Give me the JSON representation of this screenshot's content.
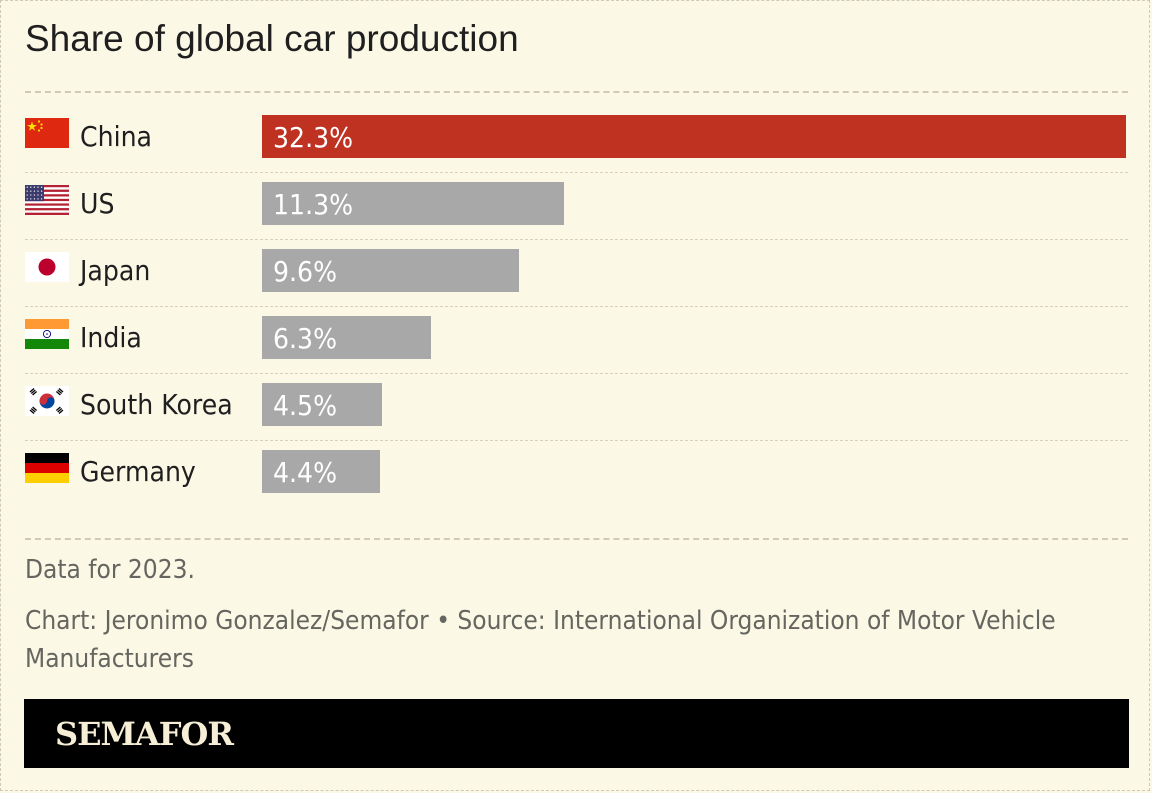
{
  "title": "Share of global car production",
  "chart_data": {
    "type": "bar",
    "orientation": "horizontal",
    "title": "Share of global car production",
    "categories": [
      "China",
      "US",
      "Japan",
      "India",
      "South Korea",
      "Germany"
    ],
    "values": [
      32.3,
      11.3,
      9.6,
      6.3,
      4.5,
      4.4
    ],
    "value_labels": [
      "32.3%",
      "11.3%",
      "9.6%",
      "6.3%",
      "4.5%",
      "4.4%"
    ],
    "flags": [
      "china-flag-icon",
      "us-flag-icon",
      "japan-flag-icon",
      "india-flag-icon",
      "south-korea-flag-icon",
      "germany-flag-icon"
    ],
    "xlim": [
      0,
      32.3
    ],
    "highlight_index": 0,
    "colors": {
      "highlight": "#bf3222",
      "default": "#a8a8a8",
      "label": "#ffffff"
    },
    "grid": false,
    "legend": "none"
  },
  "notes": {
    "data_note": "Data for 2023.",
    "credit": "Chart: Jeronimo Gonzalez/Semafor • Source: International Organization of Motor Vehicle Manufacturers"
  },
  "footer": {
    "brand": "SEMAFOR"
  },
  "colors": {
    "background": "#fbf8e6",
    "brand_bar": "#000000",
    "brand_text": "#f6efd5"
  }
}
